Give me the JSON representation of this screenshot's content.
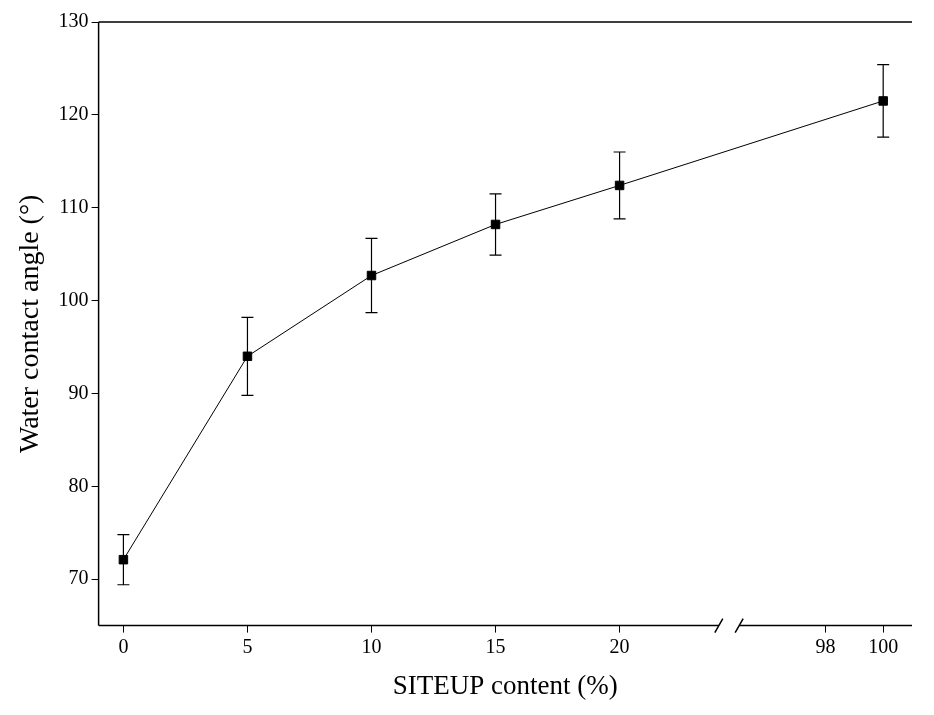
{
  "chart_data": {
    "type": "scatter",
    "x_label": "SITEUP content (%)",
    "y_label": "Water contact angle (°)",
    "x": [
      0,
      5,
      10,
      15,
      20,
      100
    ],
    "values": [
      72.1,
      94.0,
      102.7,
      108.2,
      112.4,
      121.5
    ],
    "errors": [
      2.7,
      4.2,
      4.0,
      3.3,
      3.6,
      3.9
    ],
    "color": "#000000",
    "marker": "square",
    "line_style": "solid",
    "xlim": [
      -1,
      101
    ],
    "xbreak": [
      24,
      95
    ],
    "xticks": [
      0,
      5,
      10,
      15,
      20,
      98,
      100
    ],
    "ylim": [
      65,
      130
    ],
    "yticks": [
      70,
      80,
      90,
      100,
      110,
      120,
      130
    ],
    "grid": false
  }
}
